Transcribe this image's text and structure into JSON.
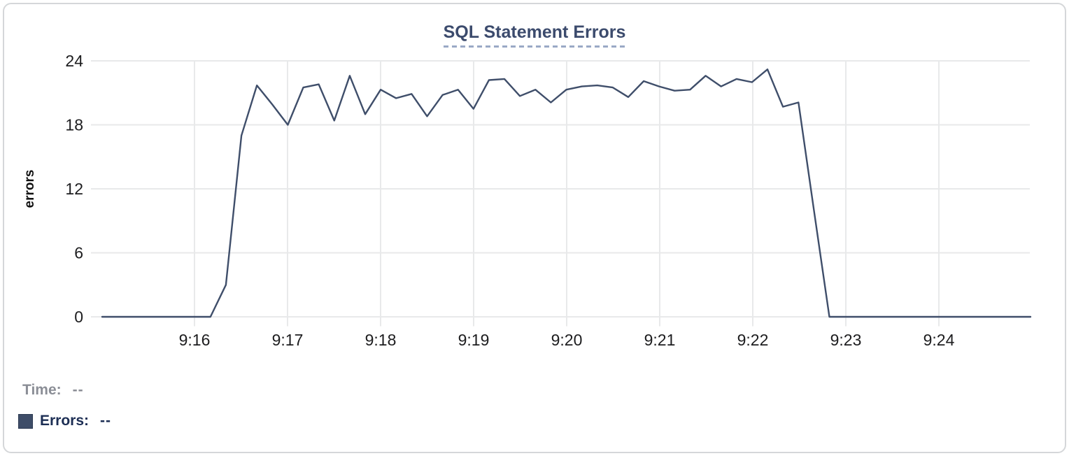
{
  "chart_data": {
    "type": "line",
    "title": "SQL Statement Errors",
    "xlabel": "",
    "ylabel": "errors",
    "x_tick_labels": [
      "9:16",
      "9:17",
      "9:18",
      "9:19",
      "9:20",
      "9:21",
      "9:22",
      "9:23",
      "9:24"
    ],
    "y_ticks": [
      0,
      6,
      12,
      18,
      24
    ],
    "ylim": [
      0,
      24
    ],
    "x_range": [
      "9:15:00",
      "9:25:00"
    ],
    "x_interval_seconds": 10,
    "grid": true,
    "legend_position": "bottom-left",
    "series": [
      {
        "name": "Errors",
        "color": "#3f4e6a",
        "values": [
          0,
          0,
          0,
          0,
          0,
          0,
          0,
          0,
          3,
          17,
          21.7,
          19.9,
          18,
          21.5,
          21.8,
          18.4,
          22.6,
          19,
          21.3,
          20.5,
          20.9,
          18.8,
          20.8,
          21.3,
          19.5,
          22.2,
          22.3,
          20.7,
          21.3,
          20.1,
          21.3,
          21.6,
          21.7,
          21.5,
          20.6,
          22.1,
          21.6,
          21.2,
          21.3,
          22.6,
          21.6,
          22.3,
          22,
          23.2,
          19.7,
          20.1,
          10,
          0,
          0,
          0,
          0,
          0,
          0,
          0,
          0,
          0,
          0,
          0,
          0,
          0,
          0
        ]
      }
    ]
  },
  "style": {
    "title_color": "#3c4b6d",
    "title_underline_color": "#9aa9c6",
    "gridline_color": "#e8e9ea",
    "tick_label_color": "#1d1d1f",
    "card_border_color": "#d5d7d9"
  },
  "tooltip_readout": {
    "time_label": "Time:",
    "time_value": "--",
    "time_color": "#8b8e96",
    "errors_label": "Errors:",
    "errors_value": "--",
    "errors_color": "#1c2e54",
    "swatch_color": "#3e4d68"
  }
}
